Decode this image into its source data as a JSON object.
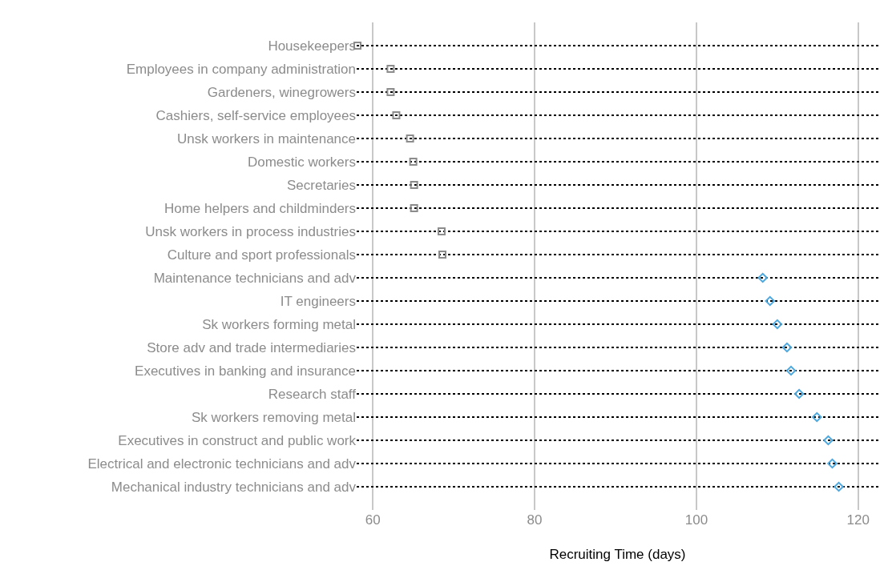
{
  "chart_data": {
    "type": "scatter",
    "xlabel": "Recruiting Time (days)",
    "categories": [
      "Housekeepers",
      "Employees in company administration",
      "Gardeners, winegrowers",
      "Cashiers, self-service employees",
      "Unsk workers in maintenance",
      "Domestic workers",
      "Secretaries",
      "Home helpers and childminders",
      "Unsk workers in process industries",
      "Culture and sport professionals",
      "Maintenance technicians and adv",
      "IT engineers",
      "Sk workers forming metal",
      "Store adv and trade intermediaries",
      "Executives in banking and insurance",
      "Research staff",
      "Sk workers removing metal",
      "Executives in construct and public work",
      "Electrical and electronic technicians and adv",
      "Mechanical industry technicians and adv"
    ],
    "series": [
      {
        "color": "#8c8c8c",
        "marker": "square",
        "values": [
          58.1,
          62.2,
          62.2,
          62.9,
          64.6,
          65.0,
          65.1,
          65.1,
          68.5,
          68.6,
          null,
          null,
          null,
          null,
          null,
          null,
          null,
          null,
          null,
          null
        ]
      },
      {
        "color": "#4ea8de",
        "marker": "diamond",
        "values": [
          null,
          null,
          null,
          null,
          null,
          null,
          null,
          null,
          null,
          null,
          108.2,
          109.1,
          110.0,
          111.2,
          111.7,
          112.7,
          114.9,
          116.3,
          116.8,
          117.6
        ]
      }
    ],
    "orientation": "horizontal",
    "xlim": [
      58,
      122.5
    ],
    "xticks": [
      60,
      80,
      100,
      120
    ],
    "grid": true
  }
}
